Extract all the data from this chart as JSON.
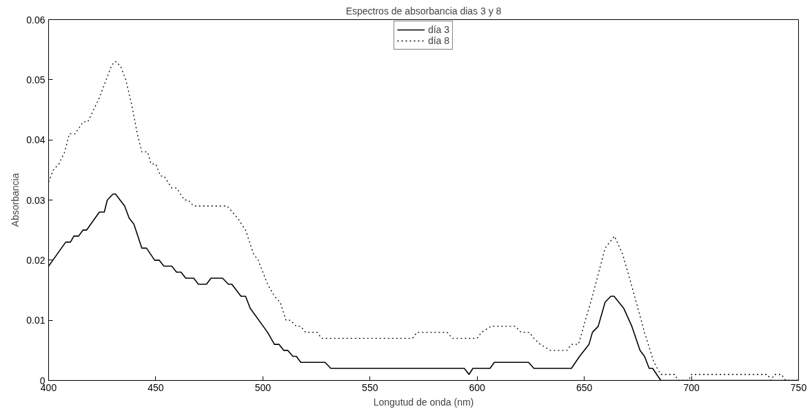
{
  "chart_data": {
    "type": "line",
    "title": "Espectros de absorbancia dias 3 y 8",
    "xlabel": "Longutud de onda (nm)",
    "ylabel": "Absorbancia",
    "xlim": [
      400,
      750
    ],
    "ylim": [
      0,
      0.06
    ],
    "xticks": [
      400,
      450,
      500,
      550,
      600,
      650,
      700,
      750
    ],
    "yticks": [
      0,
      0.01,
      0.02,
      0.03,
      0.04,
      0.05,
      0.06
    ],
    "grid": false,
    "legend": "top",
    "series": [
      {
        "name": "día 3",
        "color": "#000000",
        "line_style": "solid",
        "x": [
          400,
          408,
          410.2,
          411.8,
          414,
          416,
          417.7,
          423.7,
          426,
          427.4,
          430.1,
          431.2,
          435.5,
          437.6,
          439.8,
          443.5,
          445.7,
          449.5,
          451.6,
          453.8,
          457.5,
          459.7,
          461.8,
          464,
          467.7,
          469.9,
          473.7,
          475.8,
          481.2,
          483.9,
          485.5,
          489.8,
          491.9,
          494.1,
          502.2,
          505.4,
          507.5,
          509.7,
          511.6,
          514,
          515.6,
          517.7,
          529,
          531.7,
          594,
          596.2,
          598,
          606,
          608,
          624,
          626.5,
          644,
          647.8,
          652.2,
          653.8,
          656.5,
          659.7,
          662.4,
          663.9,
          668.4,
          672.2,
          676,
          678.1,
          680.3,
          681.9,
          685.7,
          750
        ],
        "values": [
          0.019,
          0.023,
          0.023,
          0.024,
          0.024,
          0.025,
          0.025,
          0.028,
          0.028,
          0.03,
          0.031,
          0.031,
          0.029,
          0.027,
          0.026,
          0.022,
          0.022,
          0.02,
          0.02,
          0.019,
          0.019,
          0.018,
          0.018,
          0.017,
          0.017,
          0.016,
          0.016,
          0.017,
          0.017,
          0.016,
          0.016,
          0.014,
          0.014,
          0.012,
          0.008,
          0.006,
          0.006,
          0.005,
          0.005,
          0.004,
          0.004,
          0.003,
          0.003,
          0.002,
          0.002,
          0.001,
          0.002,
          0.002,
          0.003,
          0.003,
          0.002,
          0.002,
          0.004,
          0.006,
          0.008,
          0.009,
          0.013,
          0.014,
          0.014,
          0.012,
          0.009,
          0.005,
          0.004,
          0.002,
          0.002,
          0,
          0
        ]
      },
      {
        "name": "día 8",
        "color": "#000000",
        "line_style": "dotted",
        "x": [
          400,
          402.2,
          404.8,
          407.5,
          409.7,
          412.4,
          416.1,
          418.3,
          421,
          423.7,
          425.8,
          429,
          430.6,
          431.7,
          433.9,
          436,
          438.7,
          441.4,
          443.5,
          446.2,
          447.8,
          450,
          452.2,
          453.8,
          457.5,
          459.7,
          463.4,
          465.1,
          467.7,
          483.3,
          488.2,
          491.9,
          495.7,
          497.8,
          502.2,
          505.4,
          508.1,
          510.8,
          512.9,
          515.6,
          517.7,
          519.9,
          525.3,
          527.4,
          569.8,
          571.9,
          586,
          588.4,
          600,
          602,
          606.5,
          617.8,
          620.5,
          624.3,
          626.5,
          629.4,
          634.2,
          641.9,
          644,
          647.3,
          650.5,
          653.8,
          659.7,
          664.1,
          667.9,
          672.7,
          678.1,
          682.5,
          685.7,
          692.2,
          693.8,
          698.7,
          700,
          735.5,
          737.1,
          738.7,
          742,
          744,
          750
        ],
        "values": [
          0.033,
          0.035,
          0.036,
          0.038,
          0.041,
          0.041,
          0.043,
          0.043,
          0.045,
          0.047,
          0.049,
          0.052,
          0.053,
          0.053,
          0.052,
          0.05,
          0.046,
          0.041,
          0.038,
          0.038,
          0.036,
          0.036,
          0.034,
          0.034,
          0.032,
          0.032,
          0.03,
          0.03,
          0.029,
          0.029,
          0.027,
          0.025,
          0.021,
          0.02,
          0.016,
          0.014,
          0.013,
          0.01,
          0.01,
          0.009,
          0.009,
          0.008,
          0.008,
          0.007,
          0.007,
          0.008,
          0.008,
          0.007,
          0.007,
          0.008,
          0.009,
          0.009,
          0.008,
          0.008,
          0.007,
          0.006,
          0.005,
          0.005,
          0.006,
          0.006,
          0.01,
          0.014,
          0.022,
          0.024,
          0.021,
          0.015,
          0.008,
          0.003,
          0.001,
          0.001,
          0,
          0,
          0.001,
          0.001,
          0,
          0.001,
          0.001,
          0,
          0
        ]
      }
    ]
  }
}
